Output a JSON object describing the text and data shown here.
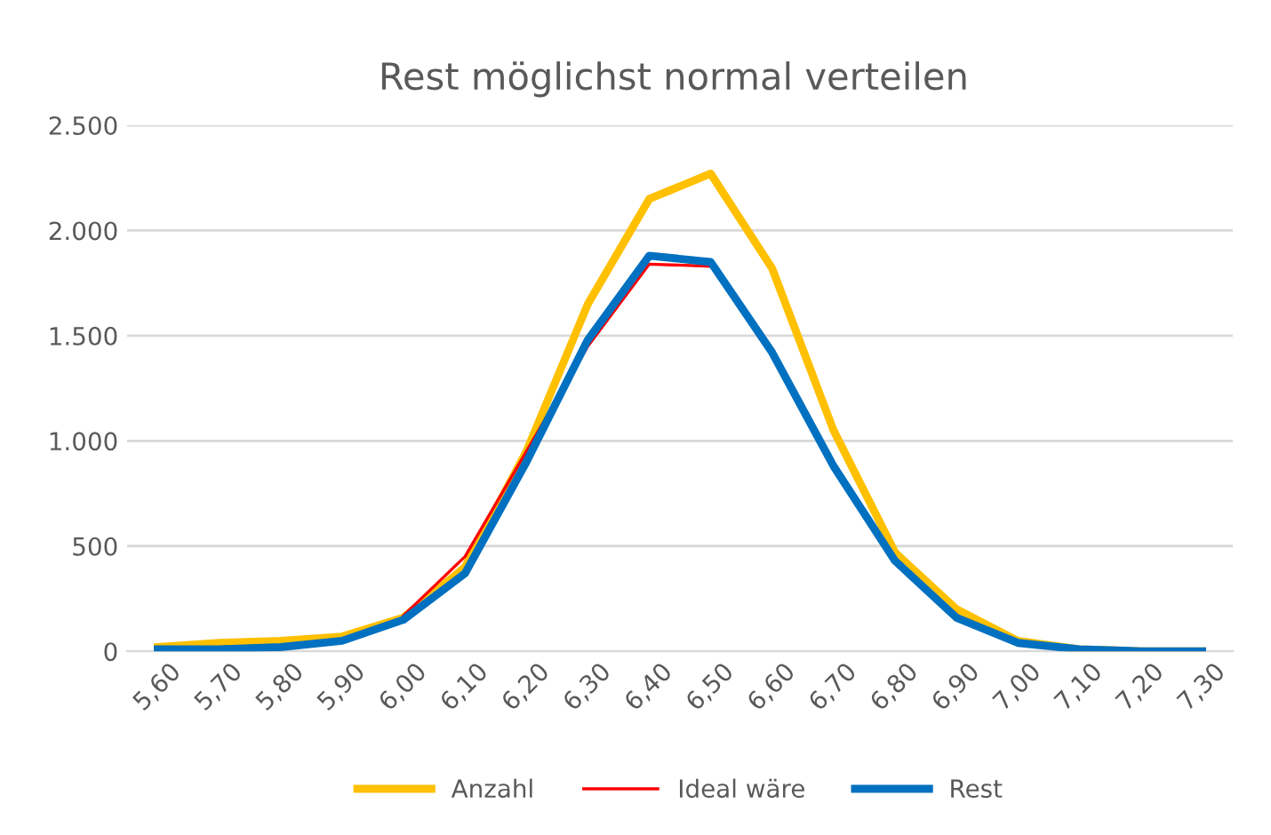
{
  "chart_data": {
    "type": "line",
    "title": "Rest möglichst normal verteilen",
    "categories": [
      "5,60",
      "5,70",
      "5,80",
      "5,90",
      "6,00",
      "6,10",
      "6,20",
      "6,30",
      "6,40",
      "6,50",
      "6,60",
      "6,70",
      "6,80",
      "6,90",
      "7,00",
      "7,10",
      "7,20",
      "7,30"
    ],
    "series": [
      {
        "name": "Anzahl",
        "color": "#ffc000",
        "values": [
          20,
          40,
          50,
          70,
          160,
          400,
          950,
          1650,
          2150,
          2270,
          1820,
          1050,
          470,
          200,
          50,
          10,
          0,
          0
        ]
      },
      {
        "name": "Ideal wäre",
        "color": "#ff0000",
        "values": [
          null,
          null,
          null,
          null,
          170,
          450,
          950,
          1450,
          1840,
          1830,
          null,
          null,
          null,
          null,
          null,
          null,
          null,
          null
        ]
      },
      {
        "name": "Rest",
        "color": "#0070c0",
        "values": [
          10,
          10,
          20,
          50,
          150,
          370,
          900,
          1480,
          1880,
          1850,
          1420,
          880,
          430,
          160,
          40,
          10,
          0,
          0
        ]
      }
    ],
    "ylim": [
      0,
      2500
    ],
    "yticks": [
      0,
      500,
      {
        "value": 1000,
        "label": "1.000"
      },
      {
        "value": 1500,
        "label": "1.500"
      },
      {
        "value": 2000,
        "label": "2.000"
      },
      {
        "value": 2500,
        "label": "2.500"
      }
    ],
    "grid": "y",
    "legend": "bottom",
    "marker": "none",
    "line_style": "solid"
  }
}
